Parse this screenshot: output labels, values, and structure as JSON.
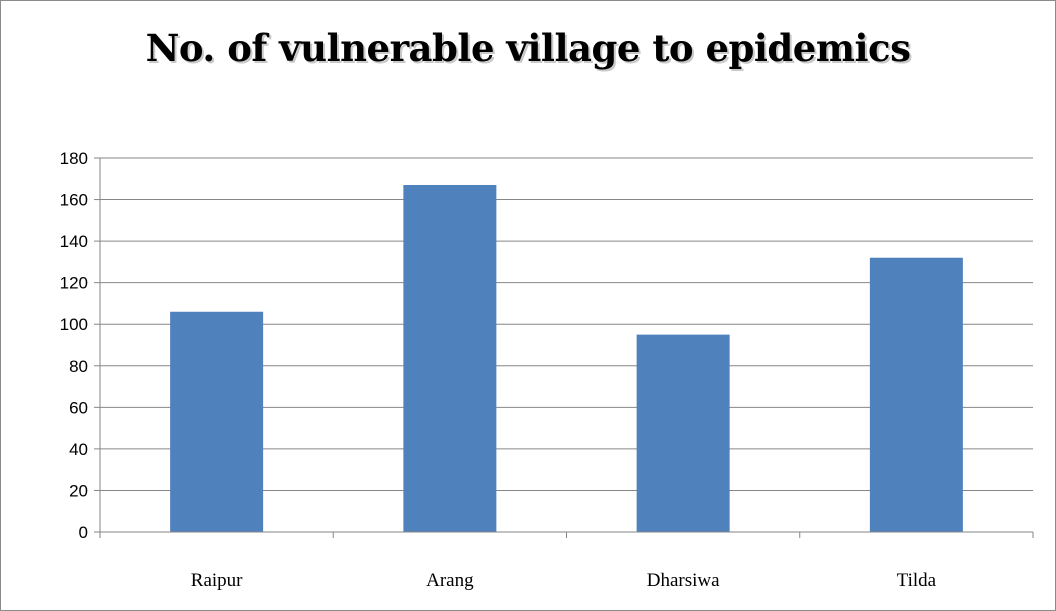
{
  "chart_data": {
    "type": "bar",
    "title": "No. of vulnerable village to epidemics",
    "categories": [
      "Raipur",
      "Arang",
      "Dharsiwa",
      "Tilda"
    ],
    "values": [
      106,
      167,
      95,
      132
    ],
    "ylim": [
      0,
      180
    ],
    "yticks": [
      "0",
      "20",
      "40",
      "60",
      "80",
      "100",
      "120",
      "140",
      "160",
      "180"
    ],
    "grid": true,
    "legend": "none",
    "bar_color": "#4f81bd"
  }
}
